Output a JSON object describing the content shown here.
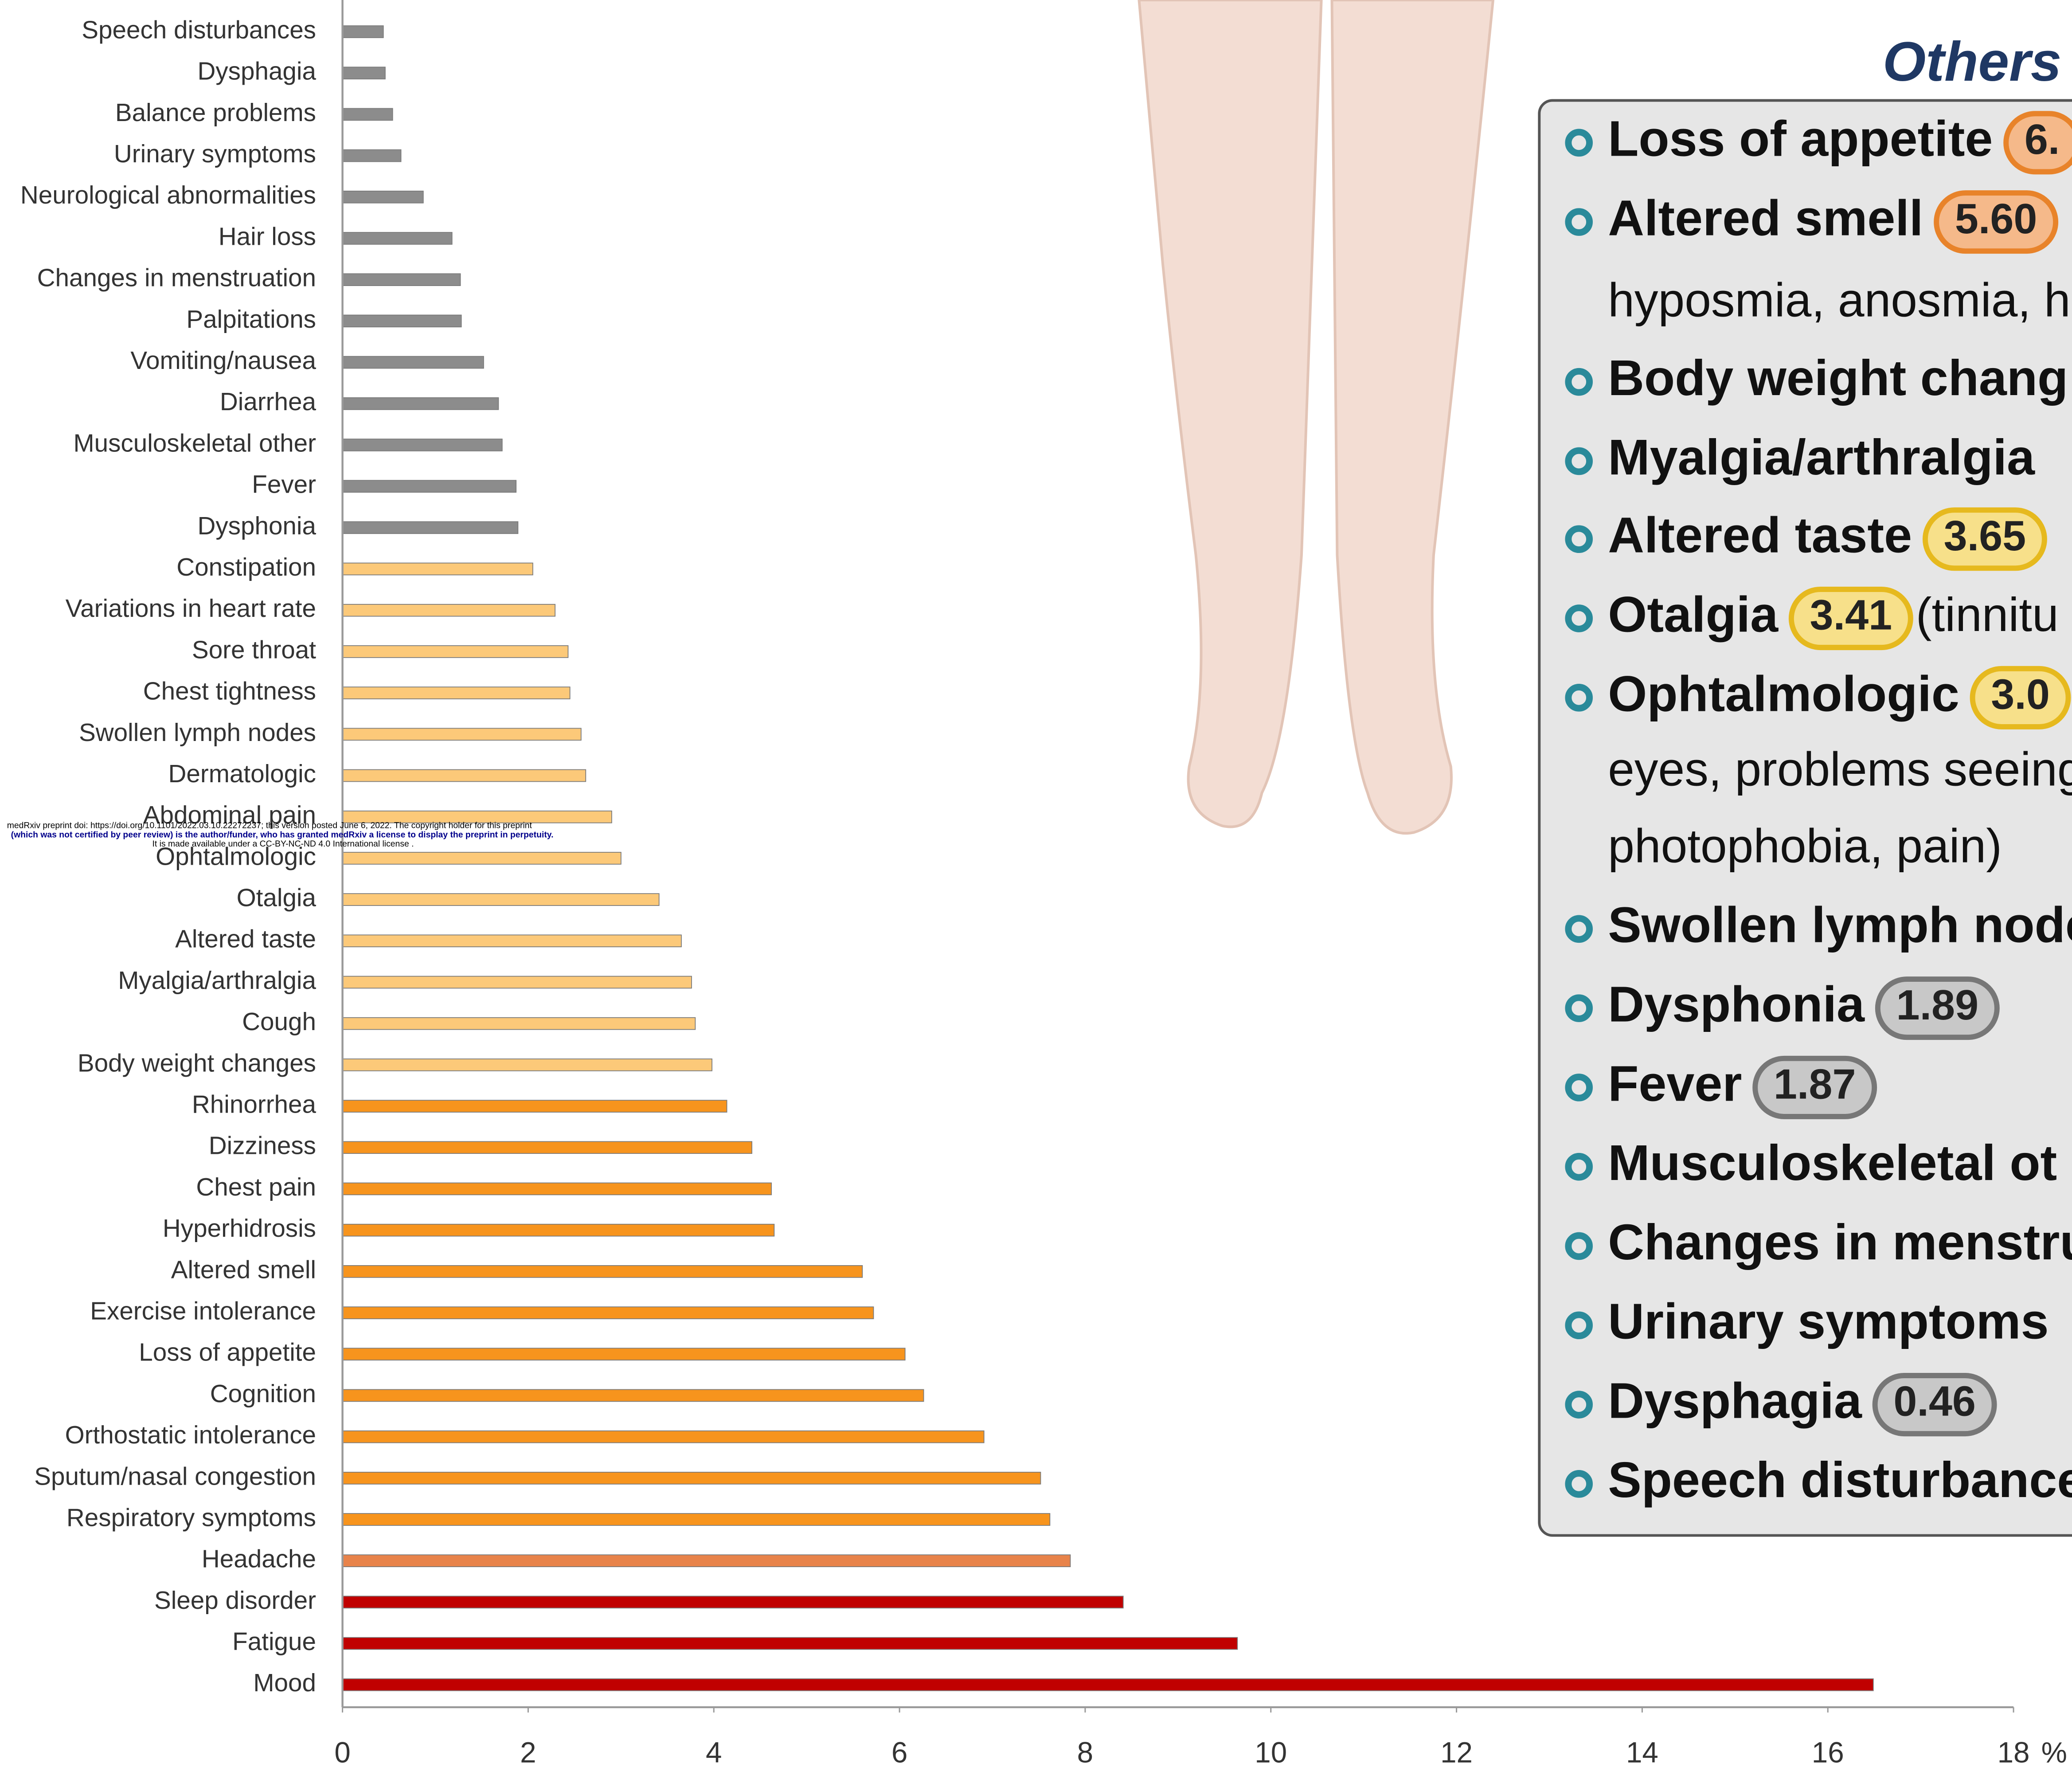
{
  "chart_data": {
    "type": "hbar",
    "categories": [
      "Speech disturbances",
      "Dysphagia",
      "Balance problems",
      "Urinary symptoms",
      "Neurological abnormalities",
      "Hair loss",
      "Changes in menstruation",
      "Palpitations",
      "Vomiting/nausea",
      "Diarrhea",
      "Musculoskeletal other",
      "Fever",
      "Dysphonia",
      "Constipation",
      "Variations in heart rate",
      "Sore throat",
      "Chest tightness",
      "Swollen lymph nodes",
      "Dermatologic",
      "Abdominal pain",
      "Ophtalmologic",
      "Otalgia",
      "Altered taste",
      "Myalgia/arthralgia",
      "Cough",
      "Body weight changes",
      "Rhinorrhea",
      "Dizziness",
      "Chest pain",
      "Hyperhidrosis",
      "Altered smell",
      "Exercise intolerance",
      "Loss of appetite",
      "Cognition",
      "Orthostatic intolerance",
      "Sputum/nasal congestion",
      "Respiratory symptoms",
      "Headache",
      "Sleep disorder",
      "Fatigue",
      "Mood"
    ],
    "values": [
      0.44,
      0.46,
      0.54,
      0.63,
      0.87,
      1.18,
      1.27,
      1.28,
      1.52,
      1.68,
      1.72,
      1.87,
      1.89,
      2.05,
      2.29,
      2.43,
      2.45,
      2.57,
      2.62,
      2.9,
      3.0,
      3.41,
      3.65,
      3.76,
      3.8,
      3.98,
      4.14,
      4.41,
      4.62,
      4.65,
      5.6,
      5.72,
      6.06,
      6.26,
      6.91,
      7.52,
      7.62,
      7.84,
      8.41,
      9.64,
      16.49
    ],
    "colors": [
      "#8c8c8c",
      "#8c8c8c",
      "#8c8c8c",
      "#8c8c8c",
      "#8c8c8c",
      "#8c8c8c",
      "#8c8c8c",
      "#8c8c8c",
      "#8c8c8c",
      "#8c8c8c",
      "#8c8c8c",
      "#8c8c8c",
      "#8c8c8c",
      "#fcc979",
      "#fcc979",
      "#fcc979",
      "#fcc979",
      "#fcc979",
      "#fcc979",
      "#fcc979",
      "#fcc979",
      "#fcc979",
      "#fcc979",
      "#fcc979",
      "#fcc979",
      "#fcc979",
      "#f7941d",
      "#f7941d",
      "#f7941d",
      "#f7941d",
      "#f7941d",
      "#f7941d",
      "#f7941d",
      "#f7941d",
      "#f7941d",
      "#f7941d",
      "#f7941d",
      "#e8834a",
      "#c00000",
      "#c00000",
      "#c00000"
    ],
    "xlim": [
      0,
      18
    ],
    "xticks": [
      0,
      2,
      4,
      6,
      8,
      10,
      12,
      14,
      16,
      18
    ],
    "x_label": "%"
  },
  "watermark": [
    "medRxiv preprint doi: https://doi.org/10.1101/2022.03.10.22272237; this version posted June 6, 2022. The copyright holder for this preprint",
    "(which was not certified by peer review) is the author/funder, who has granted medRxiv a license to display the preprint in perpetuity.",
    "It is made available under a CC-BY-NC-ND 4.0 International license ."
  ],
  "panel": {
    "title": "Others",
    "items": [
      {
        "name": "Loss of appetite",
        "badge": "6.",
        "badge_color": "orange"
      },
      {
        "name": "Altered smell",
        "badge": "5.60",
        "badge_color": "orange"
      },
      {
        "text": "hyposmia, anosmia, h"
      },
      {
        "name": "Body weight chang"
      },
      {
        "name": "Myalgia/arthralgia"
      },
      {
        "name": "Altered taste",
        "badge": "3.65",
        "badge_color": "yellow"
      },
      {
        "name": "Otalgia",
        "badge": "3.41",
        "badge_color": "yellow",
        "after": "(tinnitu"
      },
      {
        "name": "Ophtalmologic",
        "badge": "3.0",
        "badge_color": "yellow"
      },
      {
        "text": "eyes, problems seeing"
      },
      {
        "text": "photophobia, pain)"
      },
      {
        "name": "Swollen lymph node"
      },
      {
        "name": "Dysphonia",
        "badge": "1.89",
        "badge_color": "gray"
      },
      {
        "name": "Fever",
        "badge": "1.87",
        "badge_color": "gray"
      },
      {
        "name": "Musculoskeletal ot"
      },
      {
        "name": "Changes in menstru"
      },
      {
        "name": "Urinary symptoms"
      },
      {
        "name": "Dysphagia",
        "badge": "0.46",
        "badge_color": "gray"
      },
      {
        "name": "Speech disturbance"
      }
    ]
  }
}
